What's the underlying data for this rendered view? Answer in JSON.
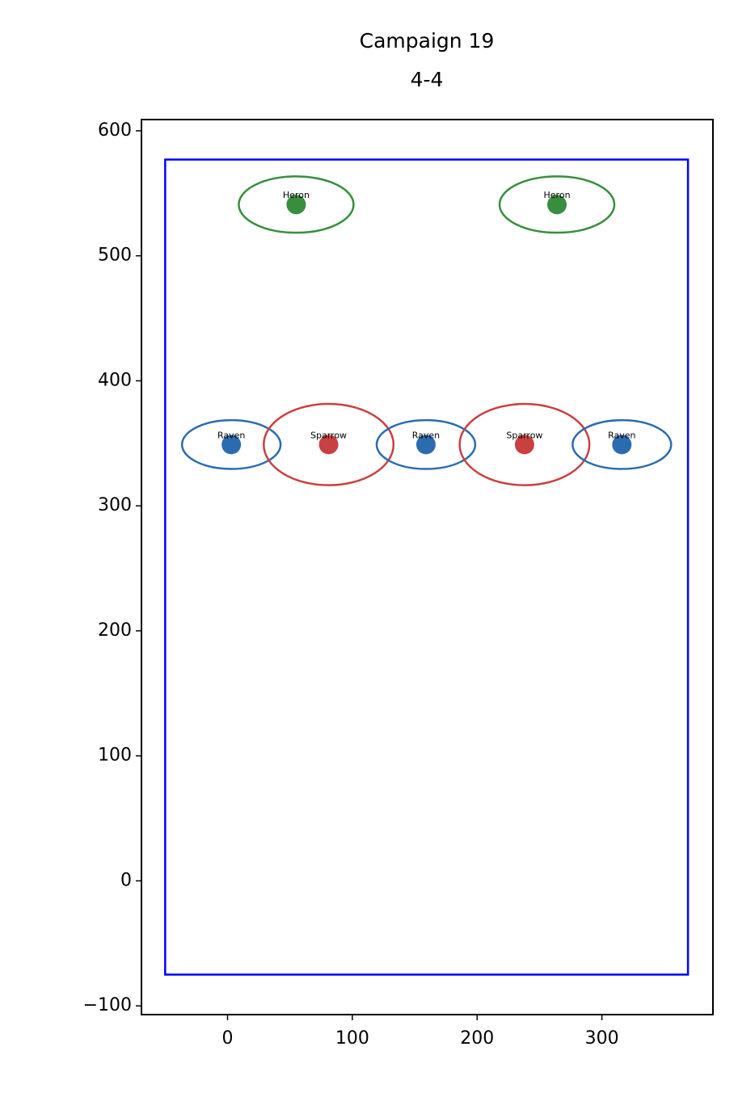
{
  "chart_data": {
    "type": "scatter",
    "title": "Campaign 19",
    "subtitle": "4-4",
    "xlim": [
      -69,
      389
    ],
    "ylim": [
      -107,
      609
    ],
    "xticks": [
      0,
      100,
      200,
      300
    ],
    "yticks": [
      {
        "value": -100,
        "label": "−100"
      },
      0,
      100,
      200,
      300,
      400,
      500,
      600
    ],
    "field": {
      "x": [
        -50,
        369
      ],
      "y": [
        -75,
        577
      ],
      "color": "#0000ff"
    },
    "points": [
      {
        "label": "Heron",
        "x": 55,
        "y": 541,
        "color": "#388e3c",
        "width": 92,
        "height": 45
      },
      {
        "label": "Heron",
        "x": 264,
        "y": 541,
        "color": "#388e3c",
        "width": 92,
        "height": 45
      },
      {
        "label": "Raven",
        "x": 3,
        "y": 349,
        "color": "#2b6cb0",
        "width": 79,
        "height": 39
      },
      {
        "label": "Sparrow",
        "x": 81,
        "y": 349,
        "color": "#c94040",
        "width": 104,
        "height": 65
      },
      {
        "label": "Raven",
        "x": 159,
        "y": 349,
        "color": "#2b6cb0",
        "width": 79,
        "height": 39
      },
      {
        "label": "Sparrow",
        "x": 238,
        "y": 349,
        "color": "#c94040",
        "width": 104,
        "height": 65
      },
      {
        "label": "Raven",
        "x": 316,
        "y": 349,
        "color": "#2b6cb0",
        "width": 79,
        "height": 39
      }
    ]
  }
}
